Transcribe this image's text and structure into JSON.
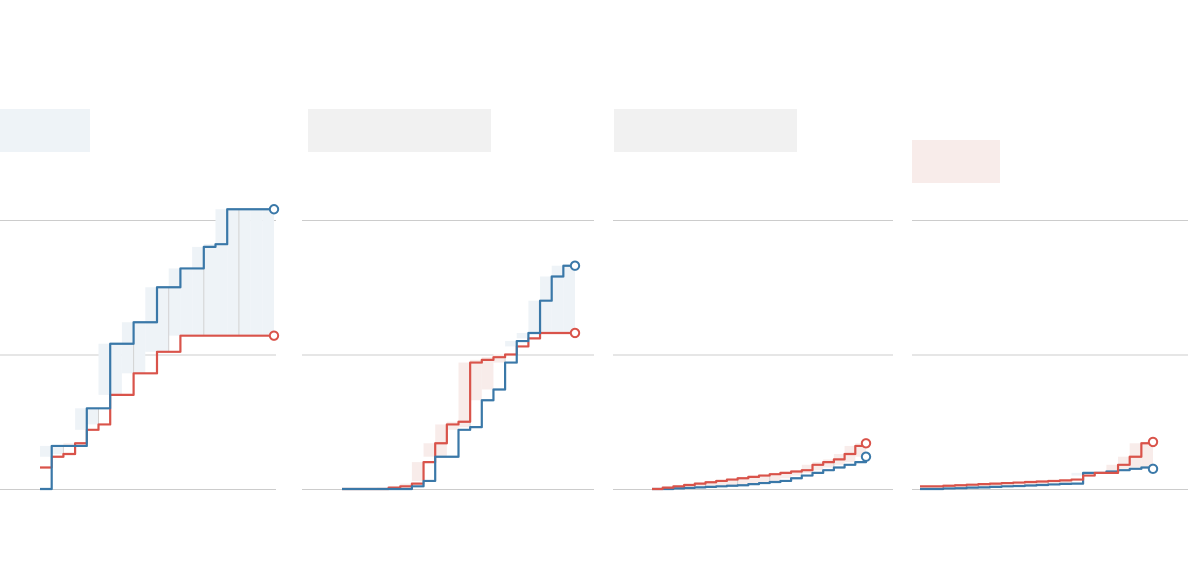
{
  "colors": {
    "blue": "#3a78a8",
    "red": "#d9534a",
    "blue_fill": "#eef3f7",
    "red_fill": "#f8ecea",
    "neutral_box": "#f1f1f1",
    "grid": "#cccccc",
    "connector": "#d2d2d2"
  },
  "chart_data": [
    {
      "type": "line",
      "title": "",
      "label_box_color": "blue",
      "leader": "blue",
      "x": [
        0,
        1,
        2,
        3,
        4,
        5,
        6,
        7,
        8,
        9,
        10,
        11,
        12,
        13,
        14,
        15,
        16,
        17,
        18,
        19,
        20
      ],
      "ylim": [
        0,
        100
      ],
      "grid_y": [
        0,
        50,
        100
      ],
      "series": [
        {
          "color": "blue",
          "values": [
            0,
            16,
            16,
            16,
            30,
            30,
            54,
            54,
            62,
            62,
            75,
            75,
            82,
            82,
            90,
            91,
            104,
            104,
            104,
            104,
            104
          ]
        },
        {
          "color": "red",
          "values": [
            8,
            12,
            13,
            17,
            22,
            24,
            35,
            35,
            43,
            43,
            51,
            51,
            57,
            57,
            57,
            57,
            57,
            57,
            57,
            57,
            57
          ]
        }
      ]
    },
    {
      "type": "line",
      "title": "",
      "label_box_color": "neutral",
      "leader": "blue",
      "x": [
        0,
        1,
        2,
        3,
        4,
        5,
        6,
        7,
        8,
        9,
        10,
        11,
        12,
        13,
        14,
        15,
        16,
        17,
        18,
        19,
        20
      ],
      "ylim": [
        0,
        100
      ],
      "grid_y": [
        0,
        50,
        100
      ],
      "series": [
        {
          "color": "blue",
          "values": [
            0,
            0,
            0,
            0,
            0,
            0,
            1,
            3,
            12,
            12,
            22,
            23,
            33,
            37,
            47,
            55,
            58,
            70,
            79,
            83,
            83
          ]
        },
        {
          "color": "red",
          "values": [
            0,
            0,
            0,
            0,
            0.5,
            1,
            2,
            10,
            17,
            24,
            25,
            47,
            48,
            49,
            50,
            53,
            56,
            58,
            58,
            58,
            58
          ]
        }
      ]
    },
    {
      "type": "line",
      "title": "",
      "label_box_color": "neutral",
      "leader": "red",
      "x": [
        0,
        1,
        2,
        3,
        4,
        5,
        6,
        7,
        8,
        9,
        10,
        11,
        12,
        13,
        14,
        15,
        16,
        17,
        18,
        19,
        20
      ],
      "ylim": [
        0,
        100
      ],
      "grid_y": [
        0,
        50,
        100
      ],
      "series": [
        {
          "color": "blue",
          "values": [
            0,
            0,
            0.2,
            0.4,
            0.6,
            0.8,
            1,
            1.2,
            1.4,
            1.8,
            2.2,
            2.6,
            3,
            4,
            5,
            6,
            7,
            8,
            9,
            10,
            12
          ]
        },
        {
          "color": "red",
          "values": [
            0,
            0.5,
            1,
            1.5,
            2,
            2.5,
            3,
            3.5,
            4,
            4.5,
            5,
            5.5,
            6,
            6.5,
            7,
            9,
            10,
            11,
            13,
            16,
            17
          ]
        }
      ]
    },
    {
      "type": "line",
      "title": "",
      "label_box_color": "red",
      "leader": "red",
      "x": [
        0,
        1,
        2,
        3,
        4,
        5,
        6,
        7,
        8,
        9,
        10,
        11,
        12,
        13,
        14,
        15,
        16,
        17,
        18,
        19,
        20
      ],
      "ylim": [
        0,
        100
      ],
      "grid_y": [
        0,
        50,
        100
      ],
      "series": [
        {
          "color": "blue",
          "values": [
            0,
            0,
            0.2,
            0.3,
            0.5,
            0.6,
            0.8,
            1,
            1.1,
            1.3,
            1.5,
            1.7,
            1.9,
            2,
            6,
            6,
            6.5,
            7,
            7.5,
            8,
            7.5
          ]
        },
        {
          "color": "red",
          "values": [
            1,
            1,
            1.2,
            1.4,
            1.6,
            1.8,
            2,
            2.2,
            2.4,
            2.6,
            2.8,
            3,
            3.2,
            3.5,
            5,
            6,
            6,
            9,
            12,
            17,
            17.5
          ]
        }
      ]
    }
  ]
}
